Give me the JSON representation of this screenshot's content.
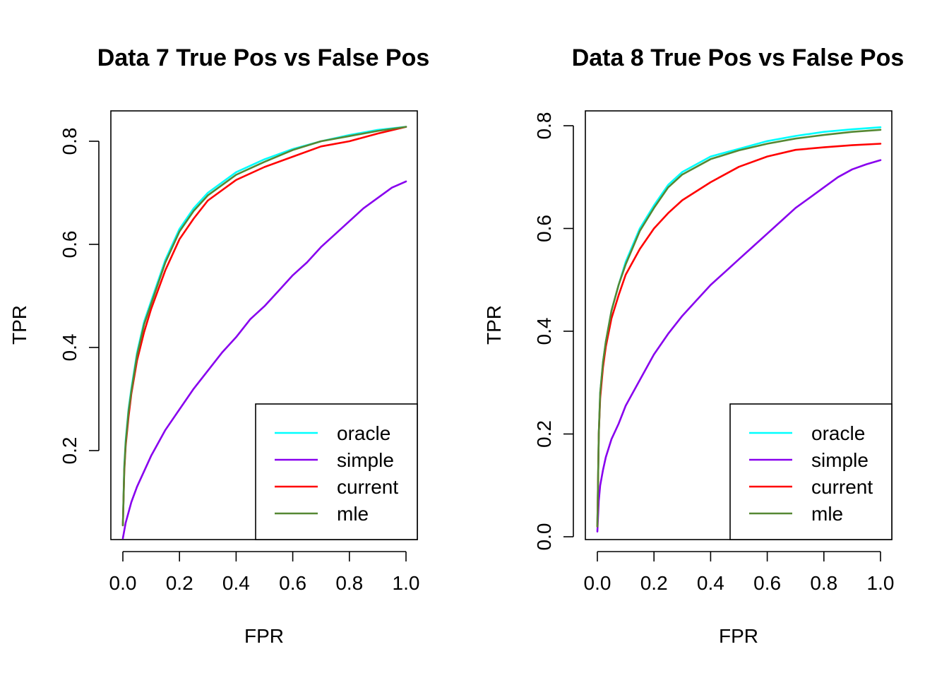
{
  "chart_data": [
    {
      "type": "line",
      "title": "Data 7 True Pos vs False Pos",
      "xlabel": "FPR",
      "ylabel": "TPR",
      "xlim": [
        0,
        1
      ],
      "ylim": [
        0.03,
        0.86
      ],
      "xticks": [
        "0.0",
        "0.2",
        "0.4",
        "0.6",
        "0.8",
        "1.0"
      ],
      "yticks": [
        "0.2",
        "0.4",
        "0.6",
        "0.8"
      ],
      "legend_position": "bottom-right",
      "series": [
        {
          "name": "oracle",
          "color": "#00ffff",
          "x": [
            0,
            0.005,
            0.01,
            0.02,
            0.03,
            0.05,
            0.075,
            0.1,
            0.15,
            0.2,
            0.25,
            0.3,
            0.4,
            0.5,
            0.6,
            0.7,
            0.8,
            0.9,
            1.0
          ],
          "y": [
            0.055,
            0.17,
            0.22,
            0.28,
            0.32,
            0.39,
            0.45,
            0.49,
            0.57,
            0.63,
            0.67,
            0.7,
            0.74,
            0.765,
            0.785,
            0.8,
            0.812,
            0.822,
            0.828
          ]
        },
        {
          "name": "simple",
          "color": "#8800ee",
          "x": [
            0,
            0.01,
            0.03,
            0.05,
            0.1,
            0.15,
            0.2,
            0.25,
            0.3,
            0.35,
            0.4,
            0.45,
            0.5,
            0.55,
            0.6,
            0.65,
            0.7,
            0.75,
            0.8,
            0.85,
            0.9,
            0.95,
            1.0
          ],
          "y": [
            0.03,
            0.06,
            0.1,
            0.13,
            0.19,
            0.24,
            0.28,
            0.32,
            0.355,
            0.39,
            0.42,
            0.455,
            0.48,
            0.51,
            0.54,
            0.565,
            0.595,
            0.62,
            0.645,
            0.67,
            0.69,
            0.71,
            0.722
          ]
        },
        {
          "name": "current",
          "color": "#ff0000",
          "x": [
            0,
            0.005,
            0.01,
            0.02,
            0.03,
            0.05,
            0.075,
            0.1,
            0.15,
            0.2,
            0.25,
            0.3,
            0.4,
            0.5,
            0.6,
            0.7,
            0.8,
            0.9,
            1.0
          ],
          "y": [
            0.055,
            0.16,
            0.21,
            0.265,
            0.31,
            0.375,
            0.43,
            0.475,
            0.55,
            0.61,
            0.65,
            0.685,
            0.725,
            0.75,
            0.77,
            0.79,
            0.8,
            0.815,
            0.828
          ]
        },
        {
          "name": "mle",
          "color": "#558833",
          "x": [
            0,
            0.005,
            0.01,
            0.02,
            0.03,
            0.05,
            0.075,
            0.1,
            0.15,
            0.2,
            0.25,
            0.3,
            0.4,
            0.5,
            0.6,
            0.7,
            0.8,
            0.9,
            1.0
          ],
          "y": [
            0.055,
            0.165,
            0.215,
            0.275,
            0.315,
            0.385,
            0.445,
            0.485,
            0.565,
            0.625,
            0.665,
            0.695,
            0.735,
            0.76,
            0.783,
            0.8,
            0.81,
            0.82,
            0.828
          ]
        }
      ]
    },
    {
      "type": "line",
      "title": "Data 8 True Pos vs False Pos",
      "xlabel": "FPR",
      "ylabel": "TPR",
      "xlim": [
        0,
        1
      ],
      "ylim": [
        0,
        0.83
      ],
      "xticks": [
        "0.0",
        "0.2",
        "0.4",
        "0.6",
        "0.8",
        "1.0"
      ],
      "yticks": [
        "0.0",
        "0.2",
        "0.4",
        "0.6",
        "0.8"
      ],
      "legend_position": "bottom-right",
      "series": [
        {
          "name": "oracle",
          "color": "#00ffff",
          "x": [
            0,
            0.005,
            0.01,
            0.02,
            0.03,
            0.05,
            0.075,
            0.1,
            0.15,
            0.2,
            0.25,
            0.3,
            0.4,
            0.5,
            0.6,
            0.7,
            0.8,
            0.9,
            1.0
          ],
          "y": [
            0.02,
            0.2,
            0.28,
            0.34,
            0.38,
            0.44,
            0.49,
            0.535,
            0.6,
            0.645,
            0.685,
            0.71,
            0.74,
            0.755,
            0.77,
            0.78,
            0.788,
            0.793,
            0.797
          ]
        },
        {
          "name": "simple",
          "color": "#8800ee",
          "x": [
            0,
            0.005,
            0.01,
            0.02,
            0.03,
            0.05,
            0.075,
            0.1,
            0.15,
            0.2,
            0.25,
            0.3,
            0.35,
            0.4,
            0.45,
            0.5,
            0.55,
            0.6,
            0.65,
            0.7,
            0.75,
            0.8,
            0.85,
            0.9,
            0.95,
            1.0
          ],
          "y": [
            0.01,
            0.07,
            0.1,
            0.13,
            0.155,
            0.19,
            0.22,
            0.255,
            0.305,
            0.355,
            0.395,
            0.43,
            0.46,
            0.49,
            0.515,
            0.54,
            0.565,
            0.59,
            0.615,
            0.64,
            0.66,
            0.68,
            0.7,
            0.715,
            0.725,
            0.733
          ]
        },
        {
          "name": "current",
          "color": "#ff0000",
          "x": [
            0,
            0.005,
            0.01,
            0.02,
            0.03,
            0.05,
            0.075,
            0.1,
            0.15,
            0.2,
            0.25,
            0.3,
            0.4,
            0.5,
            0.6,
            0.7,
            0.8,
            0.9,
            1.0
          ],
          "y": [
            0.02,
            0.2,
            0.27,
            0.33,
            0.37,
            0.425,
            0.47,
            0.51,
            0.56,
            0.6,
            0.63,
            0.655,
            0.69,
            0.72,
            0.74,
            0.753,
            0.758,
            0.762,
            0.765
          ]
        },
        {
          "name": "mle",
          "color": "#558833",
          "x": [
            0,
            0.005,
            0.01,
            0.02,
            0.03,
            0.05,
            0.075,
            0.1,
            0.15,
            0.2,
            0.25,
            0.3,
            0.4,
            0.5,
            0.6,
            0.7,
            0.8,
            0.9,
            1.0
          ],
          "y": [
            0.02,
            0.2,
            0.28,
            0.34,
            0.38,
            0.44,
            0.49,
            0.53,
            0.595,
            0.64,
            0.68,
            0.705,
            0.735,
            0.752,
            0.765,
            0.775,
            0.782,
            0.788,
            0.792
          ]
        }
      ]
    }
  ]
}
